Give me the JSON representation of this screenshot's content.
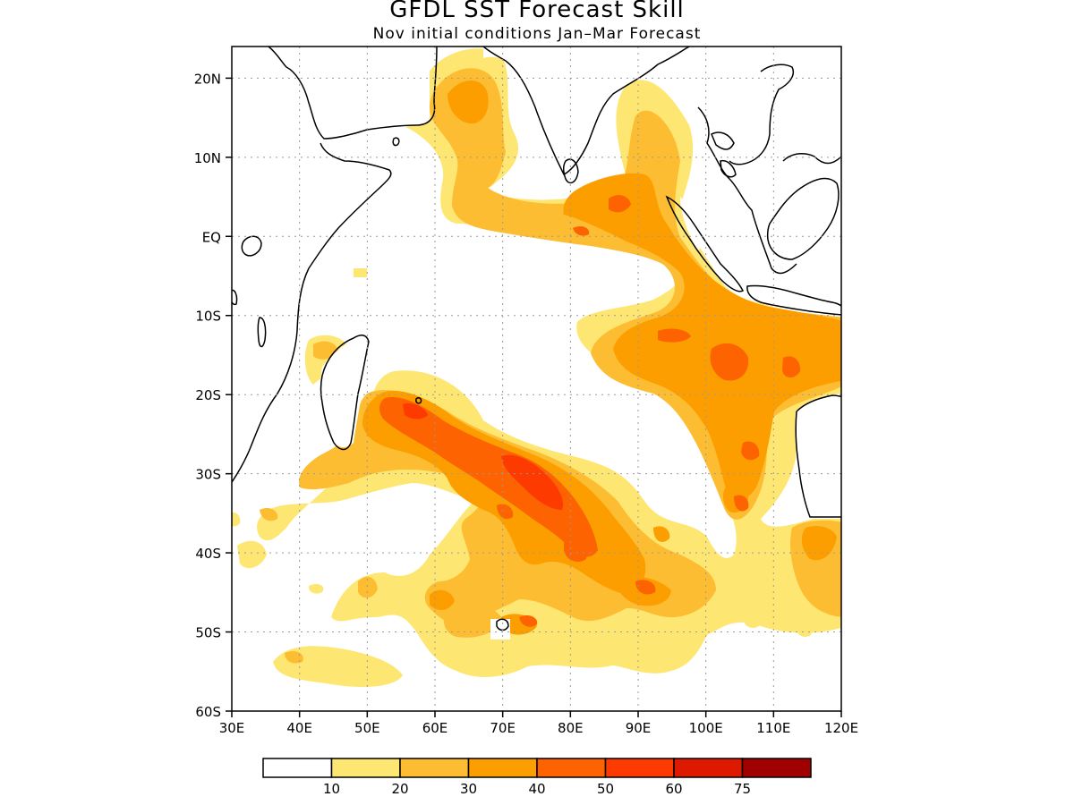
{
  "header": {
    "title": "GFDL SST Forecast Skill",
    "subtitle": "Nov initial conditions   Jan–Mar Forecast"
  },
  "map": {
    "lon_range": [
      30,
      120
    ],
    "lat_range": [
      -60,
      24
    ],
    "grid": true,
    "lon_ticks": [
      {
        "value": 30,
        "label": "30E"
      },
      {
        "value": 40,
        "label": "40E"
      },
      {
        "value": 50,
        "label": "50E"
      },
      {
        "value": 60,
        "label": "60E"
      },
      {
        "value": 70,
        "label": "70E"
      },
      {
        "value": 80,
        "label": "80E"
      },
      {
        "value": 90,
        "label": "90E"
      },
      {
        "value": 100,
        "label": "100E"
      },
      {
        "value": 110,
        "label": "110E"
      },
      {
        "value": 120,
        "label": "120E"
      }
    ],
    "lat_ticks": [
      {
        "value": 20,
        "label": "20N"
      },
      {
        "value": 10,
        "label": "10N"
      },
      {
        "value": 0,
        "label": "EQ"
      },
      {
        "value": -10,
        "label": "10S"
      },
      {
        "value": -20,
        "label": "20S"
      },
      {
        "value": -30,
        "label": "30S"
      },
      {
        "value": -40,
        "label": "40S"
      },
      {
        "value": -50,
        "label": "50S"
      },
      {
        "value": -60,
        "label": "60S"
      }
    ]
  },
  "legend": {
    "colors": [
      "#ffffff",
      "#fee673",
      "#fdbd33",
      "#fd9e00",
      "#fd6300",
      "#fd3a00",
      "#dd1a00",
      "#a10000"
    ],
    "labels": [
      "10",
      "20",
      "30",
      "40",
      "50",
      "60",
      "75"
    ]
  }
}
